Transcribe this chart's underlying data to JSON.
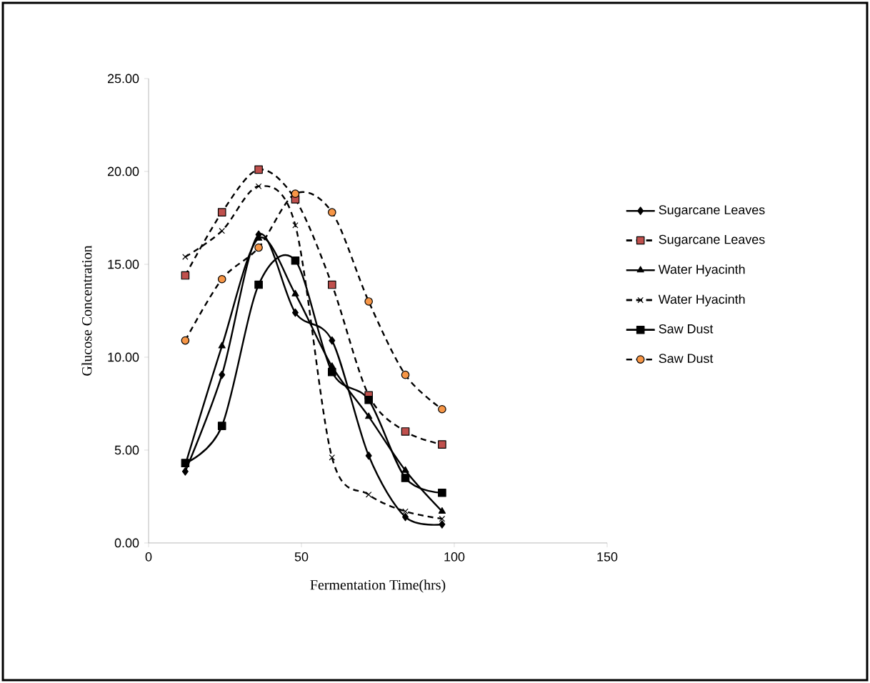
{
  "chart_data": {
    "type": "line",
    "xlabel": "Fermentation Time(hrs)",
    "ylabel": "Glucose Concentration",
    "x": [
      12,
      24,
      36,
      48,
      60,
      72,
      84,
      96
    ],
    "series": [
      {
        "name": "Sugarcane Leaves",
        "color": "#000000",
        "marker": "diamond",
        "line_style": "solid",
        "values": [
          3.85,
          9.05,
          16.6,
          12.4,
          10.9,
          4.7,
          1.4,
          1.0
        ]
      },
      {
        "name": "Sugarcane Leaves",
        "color": "#c0504d",
        "marker": "square",
        "line_style": "dashed",
        "values": [
          14.4,
          17.8,
          20.1,
          18.5,
          13.9,
          7.95,
          6.0,
          5.3
        ]
      },
      {
        "name": "Water Hyacinth",
        "color": "#000000",
        "marker": "triangle",
        "line_style": "solid",
        "values": [
          4.2,
          10.6,
          16.4,
          13.4,
          9.5,
          6.8,
          3.9,
          1.7
        ]
      },
      {
        "name": "Water Hyacinth",
        "color": "#000000",
        "marker": "cross",
        "line_style": "dashed",
        "values": [
          15.4,
          16.8,
          19.2,
          17.1,
          4.6,
          2.6,
          1.7,
          1.3
        ]
      },
      {
        "name": "Saw Dust",
        "color": "#000000",
        "marker": "square",
        "line_style": "solid",
        "values": [
          4.3,
          6.3,
          13.9,
          15.2,
          9.2,
          7.7,
          3.5,
          2.7
        ]
      },
      {
        "name": "Saw Dust",
        "color": "#f79646",
        "marker": "circle",
        "line_style": "dashed",
        "values": [
          10.9,
          14.2,
          15.9,
          18.8,
          17.8,
          13.0,
          9.05,
          7.2
        ]
      }
    ],
    "xlim": [
      0,
      150
    ],
    "ylim": [
      0,
      25
    ],
    "xticks": [
      0,
      50,
      100,
      150
    ],
    "yticks": [
      {
        "value": 0,
        "label": "0.00"
      },
      {
        "value": 5,
        "label": "5.00"
      },
      {
        "value": 10,
        "label": "10.00"
      },
      {
        "value": 15,
        "label": "15.00"
      },
      {
        "value": 20,
        "label": "20.00"
      },
      {
        "value": 25,
        "label": "25.00"
      }
    ],
    "legend": "right"
  }
}
